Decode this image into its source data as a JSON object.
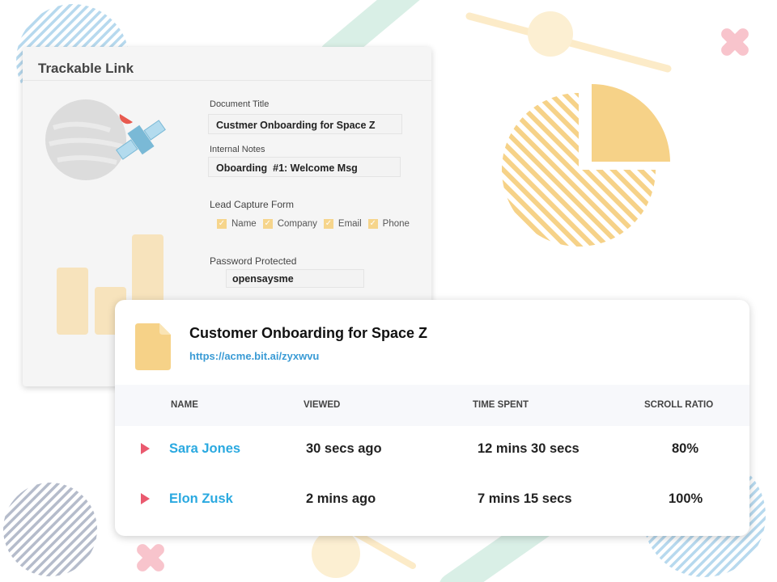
{
  "colors": {
    "accent_blue": "#2aa9e0",
    "link": "#3a9bd5",
    "yellow": "#f6d288",
    "red": "#ea5a6f"
  },
  "trackable_link": {
    "title": "Trackable Link",
    "document_title_label": "Document Title",
    "document_title_value": "Custmer Onboarding for Space Z",
    "internal_notes_label": "Internal Notes",
    "internal_notes_value": "Oboarding  #1: Welcome Msg",
    "lead_capture_label": "Lead Capture Form",
    "lead_capture_fields": [
      {
        "label": "Name",
        "checked": true
      },
      {
        "label": "Company",
        "checked": true
      },
      {
        "label": "Email",
        "checked": true
      },
      {
        "label": "Phone",
        "checked": true
      }
    ],
    "password_label": "Password Protected",
    "password_value": "opensaysme"
  },
  "document_card": {
    "icon": "document-icon",
    "title": "Customer Onboarding for Space Z",
    "link": "https://acme.bit.ai/zyxwvu",
    "columns": [
      "NAME",
      "VIEWED",
      "TIME SPENT",
      "SCROLL RATIO"
    ],
    "rows": [
      {
        "name": "Sara Jones",
        "viewed": "30 secs ago",
        "time_spent": "12 mins 30 secs",
        "scroll_ratio": "80%"
      },
      {
        "name": "Elon Zusk",
        "viewed": "2 mins ago",
        "time_spent": "7 mins 15 secs",
        "scroll_ratio": "100%"
      }
    ]
  }
}
